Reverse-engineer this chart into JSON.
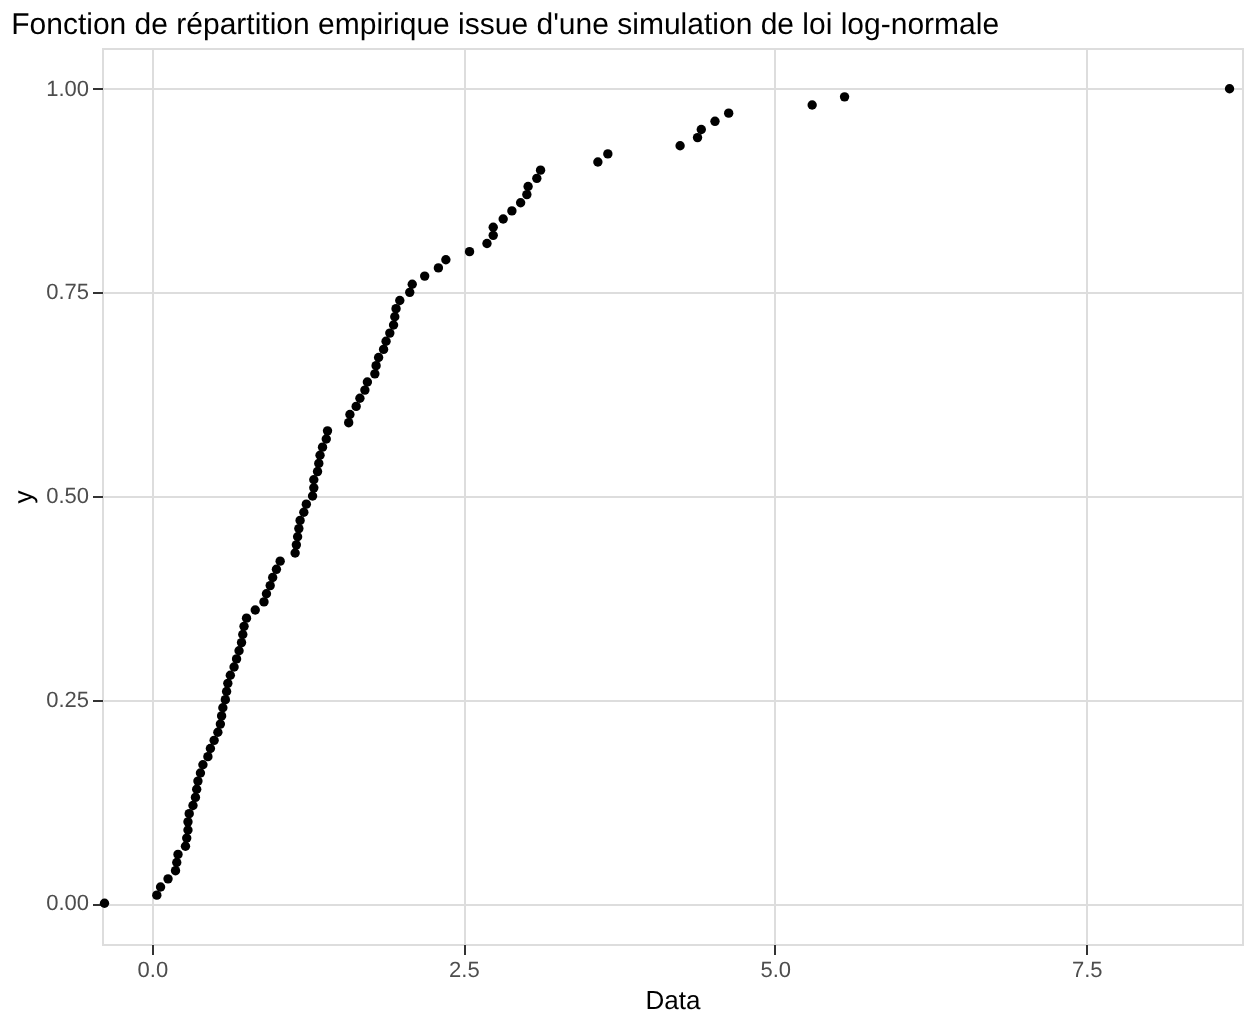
{
  "chart_data": {
    "type": "scatter",
    "title": "Fonction de répartition empirique issue d'une simulation de loi log-normale",
    "xlabel": "Data",
    "ylabel": "y",
    "x": [
      -0.38,
      0.04,
      0.07,
      0.13,
      0.19,
      0.2,
      0.21,
      0.27,
      0.28,
      0.29,
      0.29,
      0.3,
      0.33,
      0.35,
      0.36,
      0.37,
      0.39,
      0.41,
      0.45,
      0.47,
      0.5,
      0.53,
      0.55,
      0.56,
      0.57,
      0.59,
      0.6,
      0.61,
      0.63,
      0.66,
      0.68,
      0.7,
      0.72,
      0.73,
      0.74,
      0.76,
      0.83,
      0.9,
      0.92,
      0.95,
      0.97,
      1.0,
      1.03,
      1.15,
      1.16,
      1.17,
      1.18,
      1.19,
      1.22,
      1.24,
      1.29,
      1.3,
      1.3,
      1.33,
      1.34,
      1.35,
      1.37,
      1.4,
      1.41,
      1.58,
      1.59,
      1.64,
      1.67,
      1.71,
      1.73,
      1.79,
      1.8,
      1.82,
      1.86,
      1.88,
      1.91,
      1.94,
      1.95,
      1.96,
      1.99,
      2.07,
      2.09,
      2.19,
      2.3,
      2.36,
      2.55,
      2.69,
      2.74,
      2.74,
      2.82,
      2.89,
      2.96,
      3.01,
      3.02,
      3.09,
      3.12,
      3.58,
      3.66,
      4.24,
      4.38,
      4.41,
      4.52,
      4.63,
      5.3,
      5.56,
      8.65
    ],
    "series": [
      {
        "color": "#000000",
        "values": [
          0.0,
          0.01,
          0.02,
          0.03,
          0.04,
          0.05,
          0.06,
          0.07,
          0.08,
          0.09,
          0.1,
          0.11,
          0.12,
          0.13,
          0.14,
          0.15,
          0.16,
          0.17,
          0.18,
          0.19,
          0.2,
          0.21,
          0.22,
          0.23,
          0.24,
          0.25,
          0.26,
          0.27,
          0.28,
          0.29,
          0.3,
          0.31,
          0.32,
          0.33,
          0.34,
          0.35,
          0.36,
          0.37,
          0.38,
          0.39,
          0.4,
          0.41,
          0.42,
          0.43,
          0.44,
          0.45,
          0.46,
          0.47,
          0.48,
          0.49,
          0.5,
          0.51,
          0.52,
          0.53,
          0.54,
          0.55,
          0.56,
          0.57,
          0.58,
          0.59,
          0.6,
          0.61,
          0.62,
          0.63,
          0.64,
          0.65,
          0.66,
          0.67,
          0.68,
          0.69,
          0.7,
          0.71,
          0.72,
          0.73,
          0.74,
          0.75,
          0.76,
          0.77,
          0.78,
          0.79,
          0.8,
          0.81,
          0.82,
          0.83,
          0.84,
          0.85,
          0.86,
          0.87,
          0.88,
          0.89,
          0.9,
          0.91,
          0.92,
          0.93,
          0.94,
          0.95,
          0.96,
          0.97,
          0.98,
          0.99,
          1.0
        ]
      }
    ],
    "xlim": [
      -0.4,
      8.75
    ],
    "ylim": [
      -0.05,
      1.05
    ],
    "xticks": [
      {
        "value": 0,
        "label": "0.0"
      },
      {
        "value": 2.5,
        "label": "2.5"
      },
      {
        "value": 5,
        "label": "5.0"
      },
      {
        "value": 7.5,
        "label": "7.5"
      }
    ],
    "yticks": [
      {
        "value": 0,
        "label": "0.00"
      },
      {
        "value": 0.25,
        "label": "0.25"
      },
      {
        "value": 0.5,
        "label": "0.50"
      },
      {
        "value": 0.75,
        "label": "0.75"
      },
      {
        "value": 1,
        "label": "1.00"
      }
    ],
    "grid": true,
    "marker": "circle"
  }
}
